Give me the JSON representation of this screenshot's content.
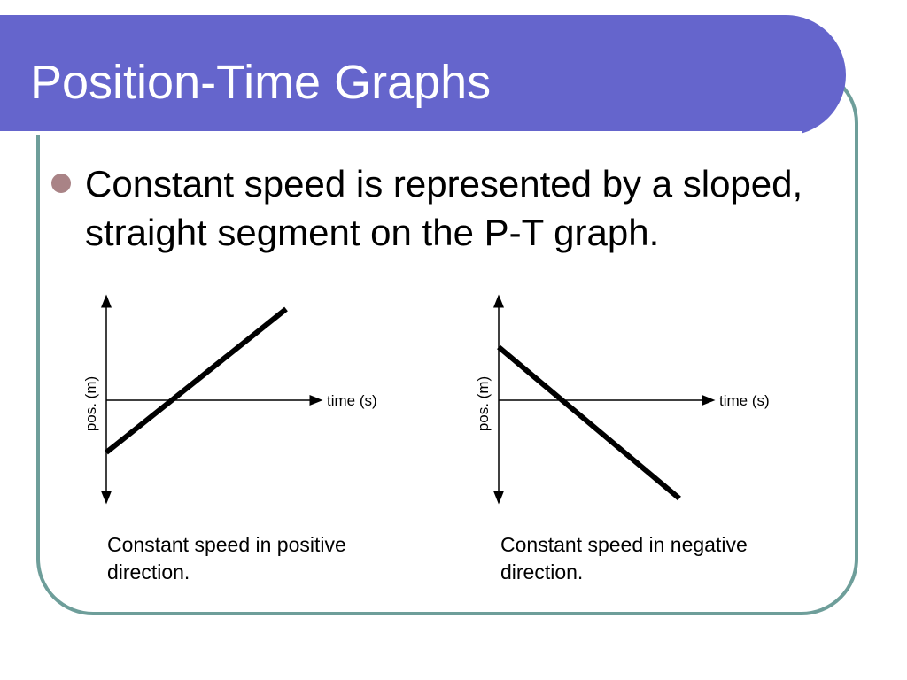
{
  "slide": {
    "title": "Position-Time Graphs",
    "bullet": "Constant speed is represented by a sloped, straight segment on the P-T graph."
  },
  "graphs": [
    {
      "ylabel": "pos. (m)",
      "xlabel": "time (s)",
      "caption": "Constant speed in positive direction.",
      "line_direction": "positive slope"
    },
    {
      "ylabel": "pos. (m)",
      "xlabel": "time (s)",
      "caption": "Constant speed in negative direction.",
      "line_direction": "negative slope"
    }
  ],
  "colors": {
    "title_bar": "#6565cc",
    "frame_border": "#6e9e9a",
    "bullet": "#a98386"
  }
}
